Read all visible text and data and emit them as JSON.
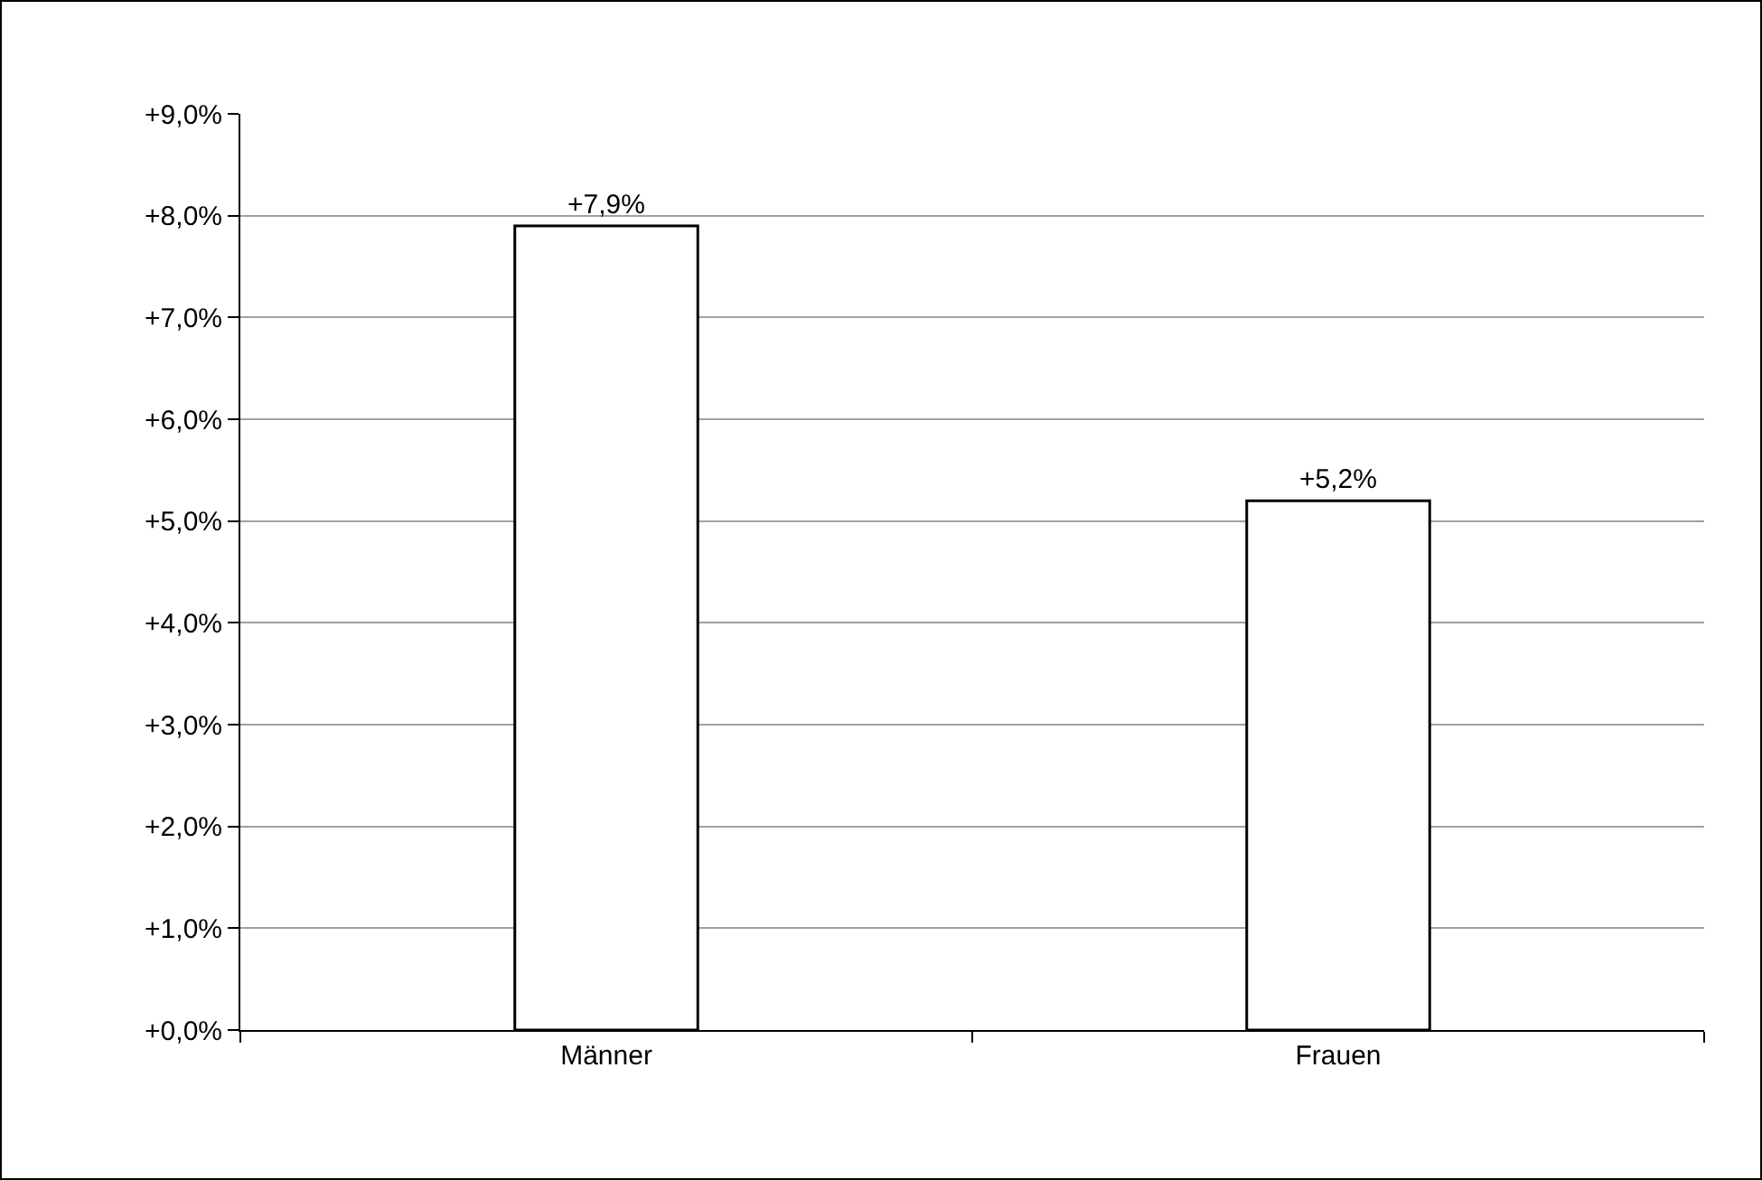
{
  "chart_data": {
    "type": "bar",
    "categories": [
      "Männer",
      "Frauen"
    ],
    "values": [
      7.9,
      5.2
    ],
    "value_labels": [
      "+7,9%",
      "+5,2%"
    ],
    "color": "#ffffff",
    "ylim": [
      0,
      9
    ],
    "yticks": [
      {
        "value": 0,
        "label": "+0,0%"
      },
      {
        "value": 1,
        "label": "+1,0%"
      },
      {
        "value": 2,
        "label": "+2,0%"
      },
      {
        "value": 3,
        "label": "+3,0%"
      },
      {
        "value": 4,
        "label": "+4,0%"
      },
      {
        "value": 5,
        "label": "+5,0%"
      },
      {
        "value": 6,
        "label": "+6,0%"
      },
      {
        "value": 7,
        "label": "+7,0%"
      },
      {
        "value": 8,
        "label": "+8,0%"
      },
      {
        "value": 9,
        "label": "+9,0%"
      }
    ],
    "grid": "y",
    "legend": false
  }
}
